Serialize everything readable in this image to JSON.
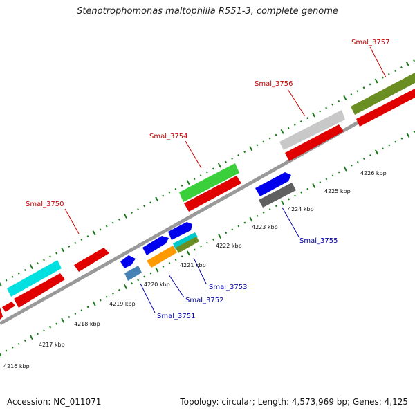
{
  "title": "Stenotrophomonas maltophilia R551-3, complete genome",
  "footer": {
    "accession": "Accession: NC_011071",
    "info": "Topology: circular; Length: 4,573,969 bp; Genes: 4,125"
  },
  "colors": {
    "backbone": "#a0a0a0",
    "tick": "#1a7a1a",
    "label_forward": "#cc0000",
    "label_reverse": "#0000aa"
  },
  "ruler_labels": [
    "4216 kbp",
    "4217 kbp",
    "4218 kbp",
    "4219 kbp",
    "4220 kbp",
    "4221 kbp",
    "4222 kbp",
    "4223 kbp",
    "4224 kbp",
    "4225 kbp",
    "4226 kbp"
  ],
  "genes_forward_labels": [
    "Smal_3750",
    "Smal_3754",
    "Smal_3756",
    "Smal_3757"
  ],
  "genes_reverse_labels": [
    "Smal_3751",
    "Smal_3752",
    "Smal_3753",
    "Smal_3755"
  ]
}
